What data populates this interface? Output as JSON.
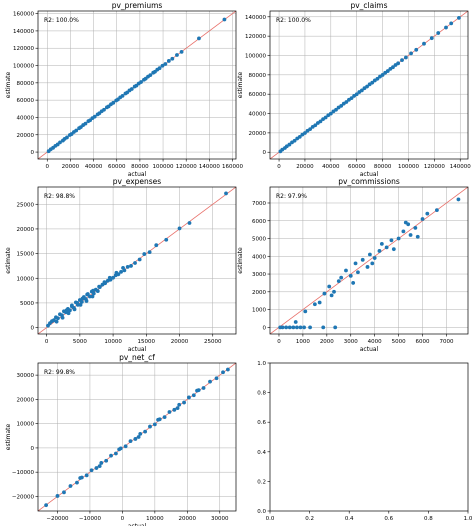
{
  "chart_data": [
    {
      "type": "scatter",
      "title": "pv_premiums",
      "xlabel": "actual",
      "ylabel": "estimate",
      "annotation": "R2: 100.0%",
      "grid": true,
      "xlim": [
        -8000,
        163000
      ],
      "ylim": [
        -8000,
        163000
      ],
      "xticks": [
        0,
        20000,
        40000,
        60000,
        80000,
        100000,
        120000,
        140000,
        160000
      ],
      "xtick_labels": [
        "0",
        "20000",
        "40000",
        "60000",
        "80000",
        "100000",
        "120000",
        "140000",
        "160000"
      ],
      "yticks": [
        0,
        20000,
        40000,
        60000,
        80000,
        100000,
        120000,
        140000,
        160000
      ],
      "ytick_labels": [
        "0",
        "20000",
        "40000",
        "60000",
        "80000",
        "100000",
        "120000",
        "140000",
        "160000"
      ],
      "reference_line": [
        -8000,
        163000
      ],
      "points": {
        "x": [
          1200,
          3000,
          5000,
          7000,
          9000,
          11000,
          13500,
          15000,
          17000,
          19500,
          21000,
          23000,
          25000,
          27500,
          29000,
          31000,
          33000,
          35500,
          37000,
          39000,
          41000,
          43500,
          45000,
          47000,
          49000,
          51500,
          53000,
          55000,
          57000,
          59500,
          61000,
          63000,
          65000,
          67500,
          69000,
          71000,
          73000,
          75500,
          77000,
          79000,
          81000,
          83500,
          85000,
          87000,
          89000,
          91500,
          93000,
          95000,
          97000,
          99500,
          102000,
          105000,
          108000,
          112000,
          116000,
          131000,
          153000
        ],
        "y": [
          1000,
          3200,
          4900,
          7200,
          8800,
          11200,
          13300,
          15200,
          16900,
          19700,
          20800,
          23200,
          24900,
          27600,
          28800,
          31200,
          32900,
          35700,
          36800,
          39200,
          40900,
          43600,
          44800,
          47200,
          48900,
          51700,
          52800,
          55200,
          56900,
          59600,
          60800,
          63200,
          64900,
          67700,
          68800,
          71200,
          72900,
          75700,
          76800,
          79200,
          80900,
          83600,
          84800,
          87200,
          88900,
          91700,
          92800,
          95200,
          96900,
          99700,
          101800,
          105300,
          107800,
          112200,
          115800,
          131300,
          153200
        ]
      }
    },
    {
      "type": "scatter",
      "title": "pv_claims",
      "xlabel": "actual",
      "ylabel": "estimate",
      "annotation": "R2: 100.0%",
      "grid": true,
      "xlim": [
        -7000,
        146000
      ],
      "ylim": [
        -7000,
        146000
      ],
      "xticks": [
        0,
        20000,
        40000,
        60000,
        80000,
        100000,
        120000,
        140000
      ],
      "xtick_labels": [
        "0",
        "20000",
        "40000",
        "60000",
        "80000",
        "100000",
        "120000",
        "140000"
      ],
      "yticks": [
        0,
        20000,
        40000,
        60000,
        80000,
        100000,
        120000,
        140000
      ],
      "ytick_labels": [
        "0",
        "20000",
        "40000",
        "60000",
        "80000",
        "100000",
        "120000",
        "140000"
      ],
      "reference_line": [
        -7000,
        146000
      ],
      "points": {
        "x": [
          1000,
          2500,
          4500,
          6000,
          8000,
          10000,
          12000,
          14000,
          16000,
          18000,
          20000,
          22000,
          24000,
          26000,
          28000,
          30000,
          32000,
          34000,
          36000,
          38000,
          40000,
          42000,
          44000,
          46000,
          48000,
          50000,
          52000,
          54000,
          56000,
          58000,
          60000,
          62000,
          64000,
          66000,
          68000,
          70000,
          72000,
          74000,
          76000,
          78000,
          80000,
          82000,
          84000,
          86000,
          88000,
          90000,
          92000,
          95000,
          98000,
          102000,
          106000,
          112000,
          118000,
          123000,
          129000,
          133000,
          139000
        ],
        "y": [
          900,
          2700,
          4400,
          6200,
          7900,
          10200,
          11900,
          14200,
          15900,
          18200,
          19900,
          22200,
          23900,
          26200,
          27900,
          30200,
          31900,
          34200,
          35900,
          38200,
          39900,
          42200,
          43900,
          46200,
          47900,
          50200,
          51900,
          54200,
          55900,
          58200,
          59900,
          62200,
          63900,
          66200,
          67900,
          70200,
          71900,
          74200,
          75900,
          78200,
          79900,
          82200,
          83900,
          86200,
          87900,
          90200,
          91900,
          95200,
          97900,
          102200,
          105900,
          112200,
          117900,
          123200,
          128900,
          133200,
          138900
        ]
      }
    },
    {
      "type": "scatter",
      "title": "pv_expenses",
      "xlabel": "actual",
      "ylabel": "estimate",
      "annotation": "R2: 98.8%",
      "grid": true,
      "xlim": [
        -1300,
        28500
      ],
      "ylim": [
        -1300,
        28500
      ],
      "xticks": [
        0,
        5000,
        10000,
        15000,
        20000,
        25000
      ],
      "xtick_labels": [
        "0",
        "5000",
        "10000",
        "15000",
        "20000",
        "25000"
      ],
      "yticks": [
        0,
        5000,
        10000,
        15000,
        20000,
        25000
      ],
      "ytick_labels": [
        "0",
        "5000",
        "10000",
        "15000",
        "20000",
        "25000"
      ],
      "reference_line": [
        -1300,
        28500
      ],
      "points": {
        "x": [
          200,
          500,
          800,
          1100,
          1400,
          1700,
          2000,
          2300,
          2600,
          2900,
          3200,
          3500,
          3800,
          4100,
          4400,
          4700,
          5000,
          5300,
          5600,
          5900,
          6200,
          6500,
          6800,
          7100,
          7400,
          7700,
          8000,
          8400,
          8800,
          9200,
          9600,
          10000,
          10400,
          10800,
          11200,
          11700,
          12200,
          12700,
          13300,
          14000,
          14700,
          15500,
          16500,
          18000,
          20000,
          21500,
          27000,
          3000,
          3800,
          4600,
          5400,
          6100,
          7000,
          7900,
          8700,
          9500,
          10500,
          11500,
          1500,
          2400,
          3300,
          4200,
          5100,
          6000,
          6900
        ],
        "y": [
          400,
          900,
          1300,
          1500,
          2100,
          1900,
          2700,
          2500,
          3300,
          3100,
          3800,
          3500,
          4500,
          4000,
          5100,
          4600,
          5600,
          5200,
          6200,
          5800,
          6800,
          6300,
          7300,
          6900,
          7700,
          7400,
          8200,
          8700,
          9000,
          9500,
          9700,
          10100,
          10600,
          10800,
          11300,
          11600,
          12300,
          12500,
          13100,
          13800,
          14900,
          15300,
          16700,
          17800,
          20100,
          21200,
          27200,
          3500,
          4300,
          5000,
          5900,
          6700,
          7500,
          8300,
          9200,
          10100,
          11100,
          12100,
          1200,
          2000,
          2900,
          3700,
          4600,
          5400,
          6300
        ]
      }
    },
    {
      "type": "scatter",
      "title": "pv_commissions",
      "xlabel": "actual",
      "ylabel": "estimate",
      "annotation": "R2: 97.9%",
      "grid": true,
      "xlim": [
        -375,
        7900
      ],
      "ylim": [
        -375,
        7900
      ],
      "xticks": [
        0,
        1000,
        2000,
        3000,
        4000,
        5000,
        6000,
        7000
      ],
      "xtick_labels": [
        "0",
        "1000",
        "2000",
        "3000",
        "4000",
        "5000",
        "6000",
        "7000"
      ],
      "yticks": [
        0,
        1000,
        2000,
        3000,
        4000,
        5000,
        6000,
        7000
      ],
      "ytick_labels": [
        "0",
        "1000",
        "2000",
        "3000",
        "4000",
        "5000",
        "6000",
        "7000"
      ],
      "reference_line": [
        -375,
        7900
      ],
      "points": {
        "x": [
          50,
          150,
          300,
          450,
          600,
          750,
          900,
          1050,
          1300,
          1850,
          2350,
          700,
          1100,
          1500,
          1700,
          1900,
          2100,
          2300,
          2500,
          2600,
          2800,
          3000,
          3200,
          3300,
          3500,
          3700,
          3800,
          4000,
          4200,
          4300,
          4500,
          4700,
          5000,
          5200,
          5300,
          5500,
          5700,
          6000,
          6200,
          6600,
          7500,
          2200,
          3100,
          3900,
          4800,
          5400,
          5800
        ],
        "y": [
          0,
          0,
          0,
          0,
          0,
          0,
          0,
          0,
          0,
          0,
          0,
          300,
          900,
          1300,
          1400,
          1900,
          2300,
          2000,
          2600,
          2800,
          3200,
          2900,
          3600,
          3100,
          3800,
          3400,
          4100,
          3900,
          4300,
          4700,
          4500,
          4900,
          5000,
          5400,
          5900,
          5200,
          5600,
          6100,
          6400,
          6600,
          7200,
          1800,
          2500,
          3600,
          4400,
          5800,
          5100
        ]
      }
    },
    {
      "type": "scatter",
      "title": "pv_net_cf",
      "xlabel": "actual",
      "ylabel": "estimate",
      "annotation": "R2: 99.8%",
      "grid": true,
      "xlim": [
        -26000,
        35000
      ],
      "ylim": [
        -26000,
        35000
      ],
      "xticks": [
        -20000,
        -10000,
        0,
        10000,
        20000,
        30000
      ],
      "xtick_labels": [
        "−20000",
        "−10000",
        "0",
        "10000",
        "20000",
        "30000"
      ],
      "yticks": [
        -20000,
        -10000,
        0,
        10000,
        20000,
        30000
      ],
      "ytick_labels": [
        "−20000",
        "−10000",
        "0",
        "10000",
        "20000",
        "30000"
      ],
      "reference_line": [
        -26000,
        35000
      ],
      "points": {
        "x": [
          -23500,
          -20000,
          -18000,
          -16000,
          -14000,
          -12500,
          -11000,
          -9500,
          -8000,
          -6500,
          -5000,
          -3500,
          -2000,
          -500,
          1000,
          2500,
          4000,
          5500,
          7000,
          8500,
          10000,
          11500,
          13000,
          14500,
          16000,
          17500,
          19000,
          20500,
          22000,
          23500,
          25000,
          27000,
          29000,
          31000,
          32500,
          -13000,
          -7000,
          -1000,
          5000,
          11000,
          17000,
          23000
        ],
        "y": [
          -23600,
          -19800,
          -18300,
          -15700,
          -14300,
          -12200,
          -11300,
          -9200,
          -8300,
          -6200,
          -5300,
          -3200,
          -2300,
          -200,
          700,
          2800,
          3700,
          5800,
          6700,
          8800,
          9700,
          11800,
          12700,
          14800,
          15700,
          17800,
          18700,
          20800,
          21700,
          23800,
          24700,
          27300,
          28700,
          31200,
          32300,
          -12400,
          -7500,
          -600,
          4500,
          11600,
          16400,
          23600
        ]
      }
    },
    {
      "type": "scatter",
      "title": "",
      "xlabel": "",
      "ylabel": "",
      "annotation": "",
      "grid": false,
      "empty": true,
      "xlim": [
        0,
        1
      ],
      "ylim": [
        0,
        1
      ],
      "xticks": [
        0.0,
        0.2,
        0.4,
        0.6,
        0.8,
        1.0
      ],
      "xtick_labels": [
        "0.0",
        "0.2",
        "0.4",
        "0.6",
        "0.8",
        "1.0"
      ],
      "yticks": [
        0.0,
        0.2,
        0.4,
        0.6,
        0.8,
        1.0
      ],
      "ytick_labels": [
        "0.0",
        "0.2",
        "0.4",
        "0.6",
        "0.8",
        "1.0"
      ],
      "points": {
        "x": [],
        "y": []
      }
    }
  ]
}
